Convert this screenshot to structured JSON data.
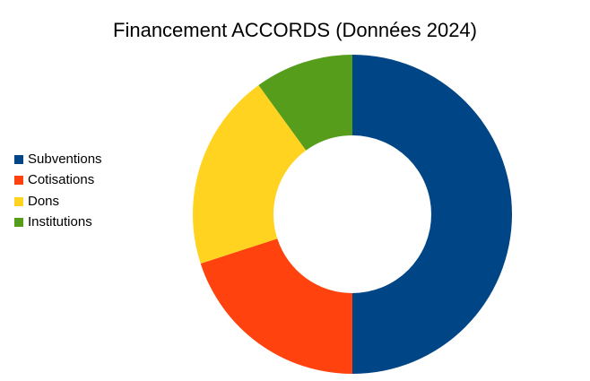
{
  "chart_data": {
    "type": "pie",
    "variant": "donut",
    "title": "Financement ACCORDS (Données 2024)",
    "categories": [
      "Subventions",
      "Cotisations",
      "Dons",
      "Institutions"
    ],
    "values": [
      50,
      20,
      20,
      10
    ],
    "colors": [
      "#004586",
      "#ff420e",
      "#ffd320",
      "#579d1c"
    ],
    "legend_position": "left",
    "start": "top",
    "direction": "clockwise"
  }
}
